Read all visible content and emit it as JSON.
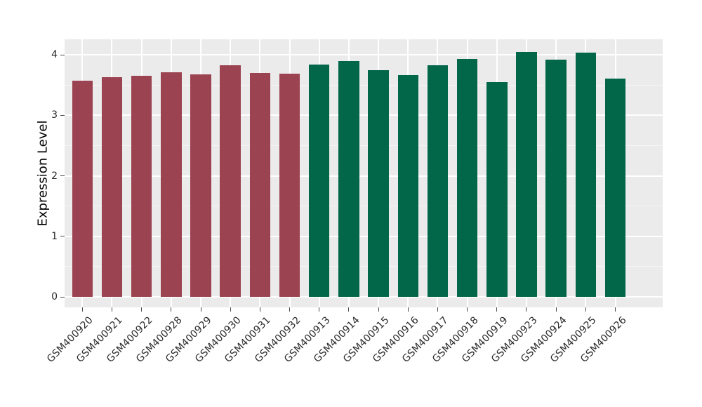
{
  "chart_data": {
    "type": "bar",
    "title": "",
    "xlabel": "",
    "ylabel": "Expression Level",
    "ylim": [
      -0.17,
      4.26
    ],
    "yticks": [
      0,
      1,
      2,
      3,
      4
    ],
    "ytick_labels": [
      "0",
      "1",
      "2",
      "3",
      "4"
    ],
    "yminor": [
      0.5,
      1.5,
      2.5,
      3.5
    ],
    "grid": "on",
    "legend_position": "none",
    "panel_bg": "#EBEBEB",
    "grid_color": "#FFFFFF",
    "tick_color": "#4a4a4a",
    "text_color": "#2b2b2b",
    "group_colors": {
      "maroon": "#9B4351",
      "green": "#026649"
    },
    "categories": [
      "GSM400920",
      "GSM400921",
      "GSM400922",
      "GSM400928",
      "GSM400929",
      "GSM400930",
      "GSM400931",
      "GSM400932",
      "GSM400913",
      "GSM400914",
      "GSM400915",
      "GSM400916",
      "GSM400917",
      "GSM400918",
      "GSM400919",
      "GSM400923",
      "GSM400924",
      "GSM400925",
      "GSM400926"
    ],
    "values": [
      3.57,
      3.63,
      3.65,
      3.71,
      3.68,
      3.83,
      3.7,
      3.69,
      3.84,
      3.9,
      3.74,
      3.66,
      3.83,
      3.93,
      3.55,
      4.05,
      3.92,
      4.03,
      3.61
    ],
    "groups": [
      "maroon",
      "maroon",
      "maroon",
      "maroon",
      "maroon",
      "maroon",
      "maroon",
      "maroon",
      "green",
      "green",
      "green",
      "green",
      "green",
      "green",
      "green",
      "green",
      "green",
      "green",
      "green"
    ]
  }
}
